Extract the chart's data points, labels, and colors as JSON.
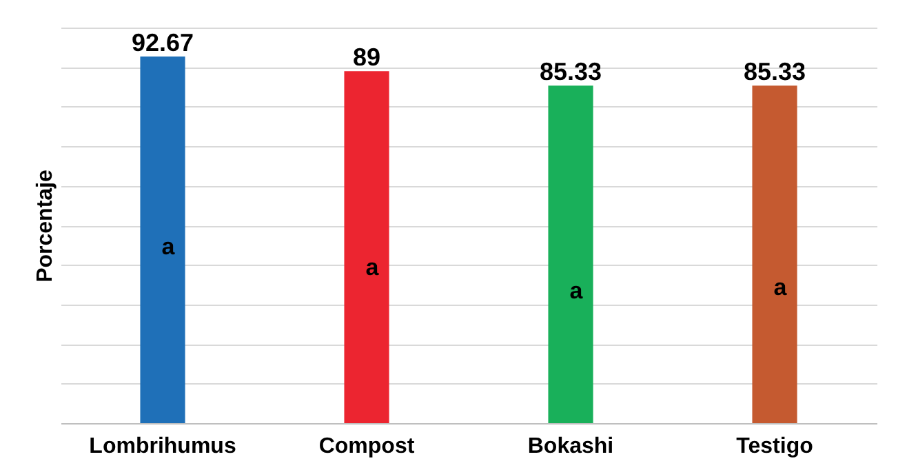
{
  "chart_data": {
    "type": "bar",
    "ylabel": "Porcentaje",
    "categories": [
      "Lombrihumus",
      "Compost",
      "Bokashi",
      "Testigo"
    ],
    "values": [
      92.67,
      89,
      85.33,
      85.33
    ],
    "colors": [
      "#1f70b8",
      "#ec2530",
      "#19b05a",
      "#c55a30"
    ],
    "ylim": [
      0,
      100
    ],
    "yticks": [
      {
        "value": 0,
        "label": null
      },
      {
        "value": 10,
        "label": null
      },
      {
        "value": 20,
        "label": null
      },
      {
        "value": 30,
        "label": null
      },
      {
        "value": 40,
        "label": null
      },
      {
        "value": 50,
        "label": null
      },
      {
        "value": 60,
        "label": null
      },
      {
        "value": 70,
        "label": null
      },
      {
        "value": 80,
        "label": null
      },
      {
        "value": 90,
        "label": null
      },
      {
        "value": 100,
        "label": null
      }
    ],
    "grid": "y",
    "tick_labels": "x",
    "data_labels": true,
    "annotations": [
      "a",
      "a",
      "a",
      "a"
    ]
  }
}
